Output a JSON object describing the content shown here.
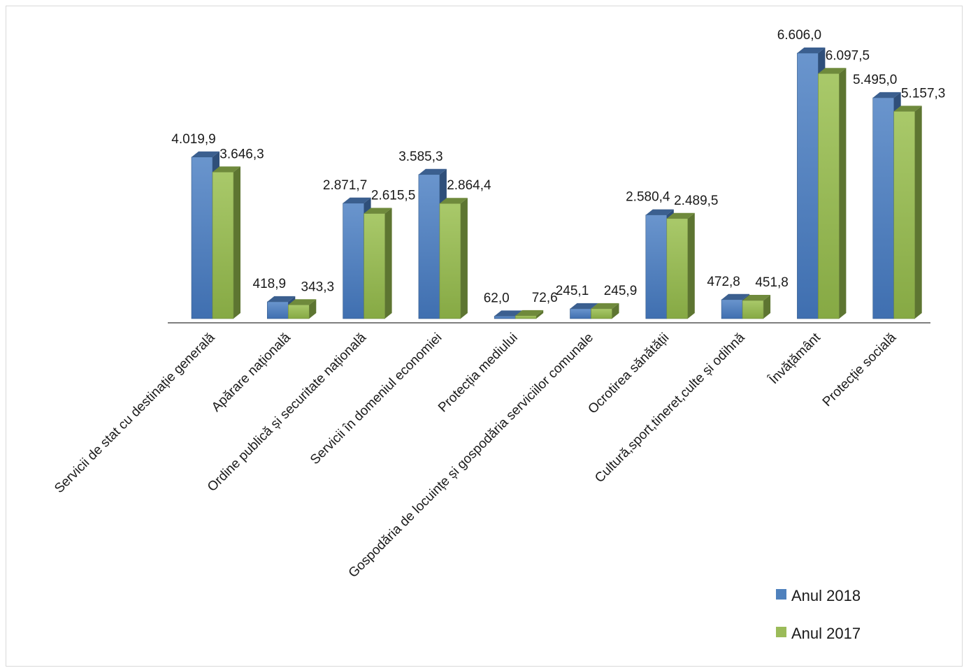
{
  "colors": {
    "series_2018": "#4f81bd",
    "series_2017": "#9bbb59",
    "axis": "#7f7f7f"
  },
  "chart_data": {
    "type": "bar",
    "title": "",
    "xlabel": "",
    "ylabel": "",
    "ylim": [
      0,
      7000
    ],
    "grid": false,
    "legend_position": "bottom-right",
    "categories": [
      "Servicii de stat cu destinație generală",
      "Apărare națională",
      "Ordine publică și securitate națională",
      "Servicii în domeniul economiei",
      "Protecția mediului",
      "Gospodăria de locuințe și gospodăria  serviciilor comunale",
      "Ocrotirea sănătății",
      "Cultură,sport,tineret,culte și odihnă",
      "Învățământ",
      "Protecție socială"
    ],
    "series": [
      {
        "name": "Anul 2018",
        "values": [
          4019.9,
          418.9,
          2871.7,
          3585.3,
          62.0,
          245.1,
          2580.4,
          472.8,
          6606.0,
          5495.0
        ],
        "labels": [
          "4.019,9",
          "418,9",
          "2.871,7",
          "3.585,3",
          "62,0",
          "245,1",
          "2.580,4",
          "472,8",
          "6.606,0",
          "5.495,0"
        ]
      },
      {
        "name": "Anul 2017",
        "values": [
          3646.3,
          343.3,
          2615.5,
          2864.4,
          72.6,
          245.9,
          2489.5,
          451.8,
          6097.5,
          5157.3
        ],
        "labels": [
          "3.646,3",
          "343,3",
          "2.615,5",
          "2.864,4",
          "72,6",
          "245,9",
          "2.489,5",
          "451,8",
          "6.097,5",
          "5.157,3"
        ]
      }
    ]
  }
}
